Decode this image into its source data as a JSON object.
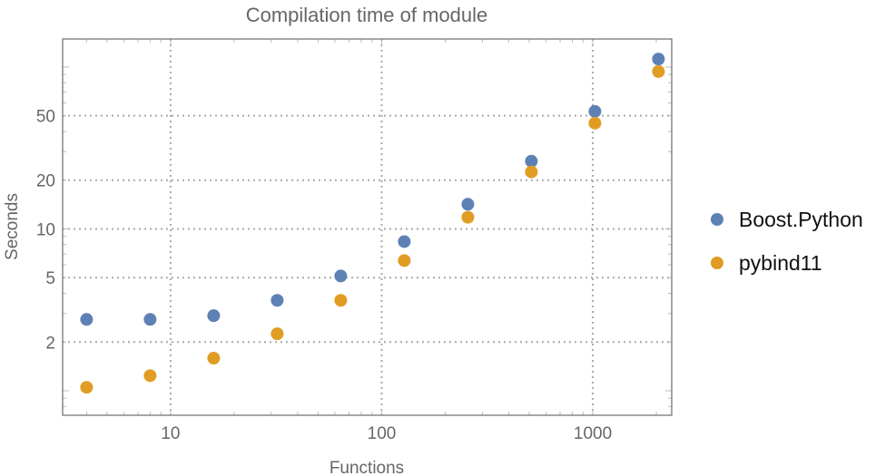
{
  "chart_data": {
    "type": "scatter",
    "title": "Compilation time of module",
    "xlabel": "Functions",
    "ylabel": "Seconds",
    "xscale": "log",
    "yscale": "log",
    "xlim": [
      3.08,
      2366
    ],
    "ylim": [
      0.706,
      149
    ],
    "grid": true,
    "legend_position": "right",
    "xticks": [
      {
        "value": 10,
        "label": "10"
      },
      {
        "value": 100,
        "label": "100"
      },
      {
        "value": 1000,
        "label": "1000"
      }
    ],
    "yticks": [
      {
        "value": 2,
        "label": "2"
      },
      {
        "value": 5,
        "label": "5"
      },
      {
        "value": 10,
        "label": "10"
      },
      {
        "value": 20,
        "label": "20"
      },
      {
        "value": 50,
        "label": "50"
      }
    ],
    "x": [
      4,
      8,
      16,
      32,
      64,
      128,
      256,
      512,
      1024,
      2048
    ],
    "series": [
      {
        "name": "Boost.Python",
        "color": "#5e81b5",
        "values": [
          2.76,
          2.76,
          2.91,
          3.62,
          5.12,
          8.35,
          14.2,
          26.2,
          53.2,
          112
        ]
      },
      {
        "name": "pybind11",
        "color": "#e19c24",
        "values": [
          1.05,
          1.24,
          1.59,
          2.25,
          3.62,
          6.37,
          11.8,
          22.5,
          45.0,
          93.8
        ]
      }
    ]
  }
}
